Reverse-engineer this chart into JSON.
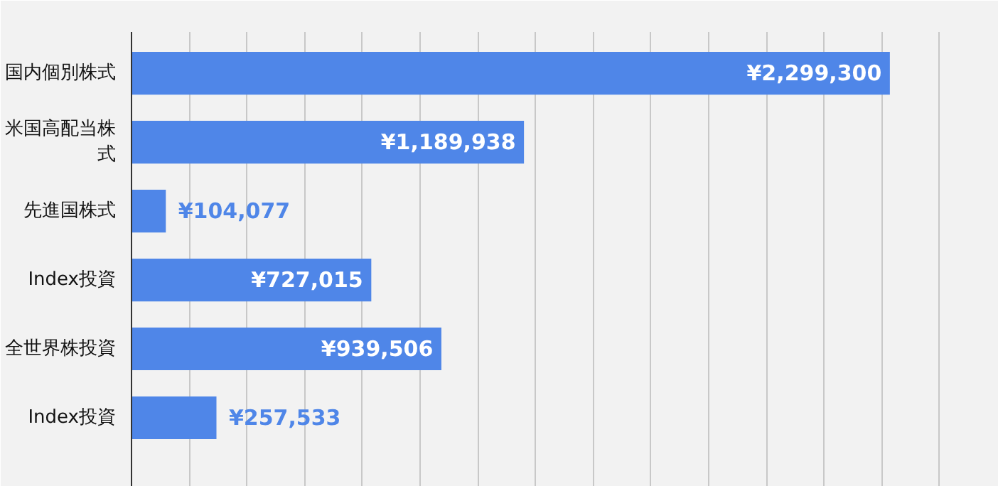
{
  "chart_data": {
    "type": "bar",
    "orientation": "horizontal",
    "categories": [
      "国内個別株式",
      "米国高配当株式",
      "先進国株式",
      "Index投資",
      "全世界株投資",
      "Index投資"
    ],
    "values": [
      2299300,
      1189938,
      104077,
      727015,
      939506,
      257533
    ],
    "value_labels": [
      "¥2,299,300",
      "¥1,189,938",
      "¥104,077",
      "¥727,015",
      "¥939,506",
      "¥257,533"
    ],
    "color": "#4f86e8",
    "xlim": [
      0,
      2500000
    ],
    "xticks": [
      {
        "value": 0,
        "label": null
      },
      {
        "value": 175000,
        "label": null
      },
      {
        "value": 350000,
        "label": null
      },
      {
        "value": 525000,
        "label": null
      },
      {
        "value": 700000,
        "label": null
      },
      {
        "value": 875000,
        "label": null
      },
      {
        "value": 1050000,
        "label": null
      },
      {
        "value": 1225000,
        "label": null
      },
      {
        "value": 1400000,
        "label": null
      },
      {
        "value": 1575000,
        "label": null
      },
      {
        "value": 1750000,
        "label": null
      },
      {
        "value": 1925000,
        "label": null
      },
      {
        "value": 2100000,
        "label": null
      },
      {
        "value": 2275000,
        "label": null
      },
      {
        "value": 2450000,
        "label": null
      }
    ],
    "grid": "x",
    "tick_labels": "y"
  }
}
